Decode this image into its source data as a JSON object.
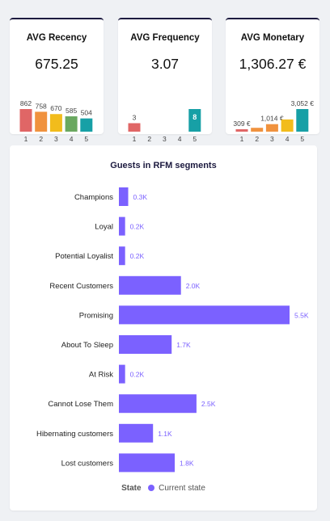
{
  "kpis": [
    {
      "title": "AVG Recency",
      "value": "675.25"
    },
    {
      "title": "AVG Frequency",
      "value": "3.07"
    },
    {
      "title": "AVG Monetary",
      "value": "1,306.27 €"
    }
  ],
  "segments_chart": {
    "title": "Guests in RFM segments",
    "legend_title": "State",
    "legend_label": "Current state",
    "bar_color": "#7b61ff"
  },
  "chart_data": [
    {
      "type": "bar",
      "title": "AVG Recency",
      "categories": [
        "1",
        "2",
        "3",
        "4",
        "5"
      ],
      "values": [
        862,
        758,
        670,
        585,
        504
      ],
      "labels": [
        "862",
        "758",
        "670",
        "585",
        "504"
      ],
      "colors": [
        "#e06666",
        "#f0923e",
        "#f2bc1c",
        "#6aa860",
        "#17a0a6"
      ]
    },
    {
      "type": "bar",
      "title": "AVG Frequency",
      "categories": [
        "1",
        "2",
        "3",
        "4",
        "5"
      ],
      "values": [
        3,
        0,
        0,
        0,
        8
      ],
      "labels": [
        "3",
        "",
        "",
        "",
        "8"
      ],
      "colors": [
        "#e06666",
        "#f0923e",
        "#f2bc1c",
        "#6aa860",
        "#17a0a6"
      ]
    },
    {
      "type": "bar",
      "title": "AVG Monetary",
      "categories": [
        "1",
        "2",
        "3",
        "4",
        "5"
      ],
      "values": [
        309,
        520,
        1014,
        1650,
        3052
      ],
      "labels": [
        "309 €",
        "",
        "1,014 €",
        "",
        "3,052 €"
      ],
      "colors": [
        "#e06666",
        "#f0923e",
        "#f0923e",
        "#f2bc1c",
        "#17a0a6"
      ]
    },
    {
      "type": "bar",
      "orientation": "horizontal",
      "title": "Guests in RFM segments",
      "categories": [
        "Champions",
        "Loyal",
        "Potential Loyalist",
        "Recent Customers",
        "Promising",
        "About To Sleep",
        "At Risk",
        "Cannot Lose Them",
        "Hibernating customers",
        "Lost customers"
      ],
      "series": [
        {
          "name": "Current state",
          "values": [
            0.3,
            0.2,
            0.2,
            2.0,
            5.5,
            1.7,
            0.2,
            2.5,
            1.1,
            1.8
          ],
          "labels": [
            "0.3K",
            "0.2K",
            "0.2K",
            "2.0K",
            "5.5K",
            "1.7K",
            "0.2K",
            "2.5K",
            "1.1K",
            "1.8K"
          ]
        }
      ],
      "unit": "K",
      "xlim": [
        0,
        5.5
      ],
      "grid": false,
      "legend_position": "bottom"
    }
  ]
}
